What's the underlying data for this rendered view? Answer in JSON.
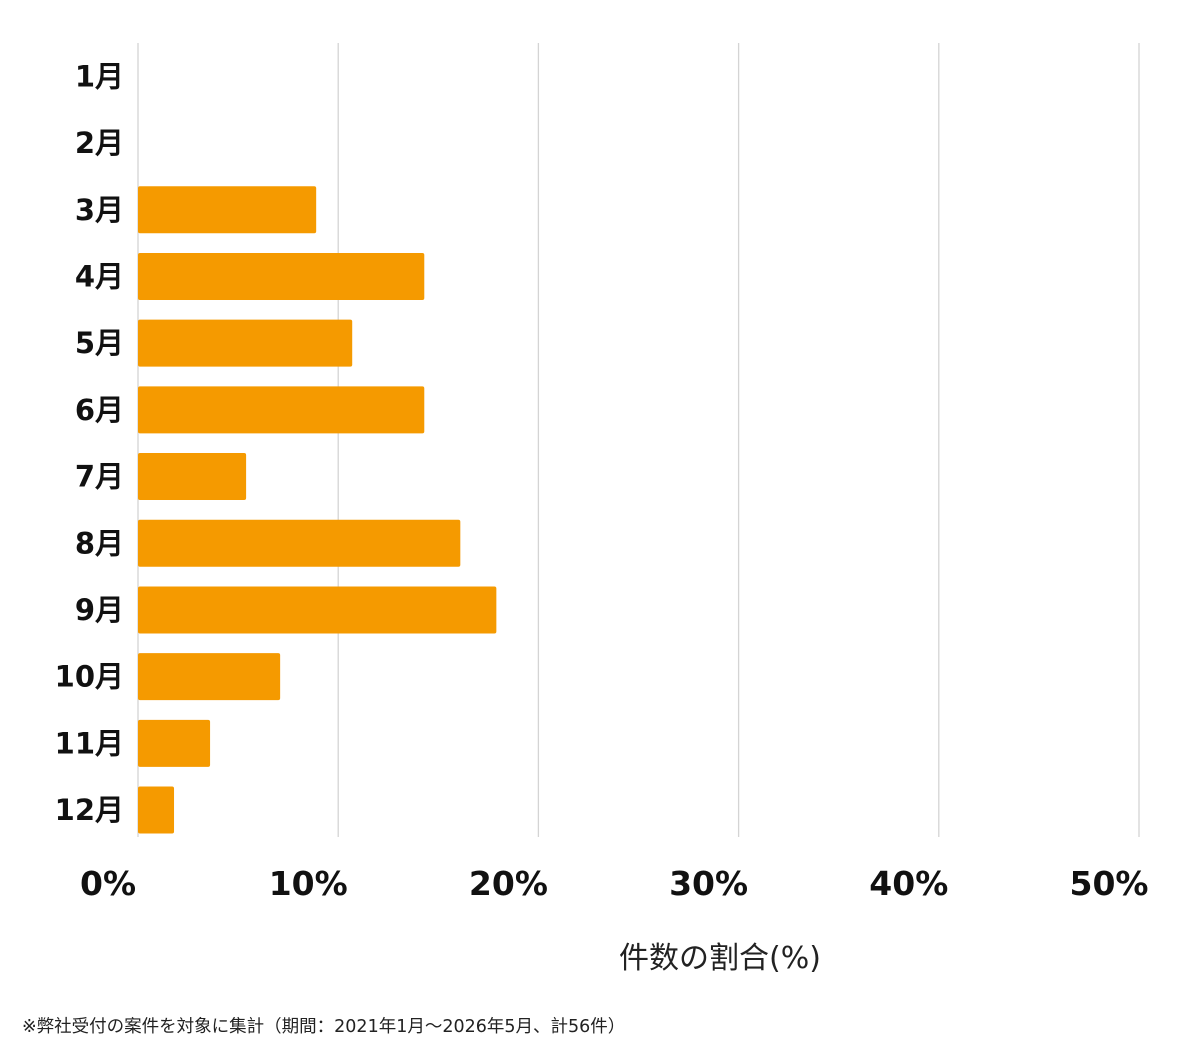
{
  "chart_data": {
    "type": "bar",
    "orientation": "horizontal",
    "categories": [
      "1月",
      "2月",
      "3月",
      "4月",
      "5月",
      "6月",
      "7月",
      "8月",
      "9月",
      "10月",
      "11月",
      "12月"
    ],
    "values": [
      0,
      0,
      8.9,
      14.3,
      10.7,
      14.3,
      5.4,
      16.1,
      17.9,
      7.1,
      3.6,
      1.8
    ],
    "xlabel": "件数の割合(%)",
    "xlim": [
      0,
      50
    ],
    "xticks": [
      0,
      10,
      20,
      30,
      40,
      50
    ],
    "tick_format": "{v}%",
    "grid": "vertical",
    "legend": "none",
    "bar_color": "#F59A00",
    "gridline_color": "#d4d4d4"
  },
  "footnote": "※弊社受付の案件を対象に集計（期間：2021年1月〜2026年5月、計56件）"
}
